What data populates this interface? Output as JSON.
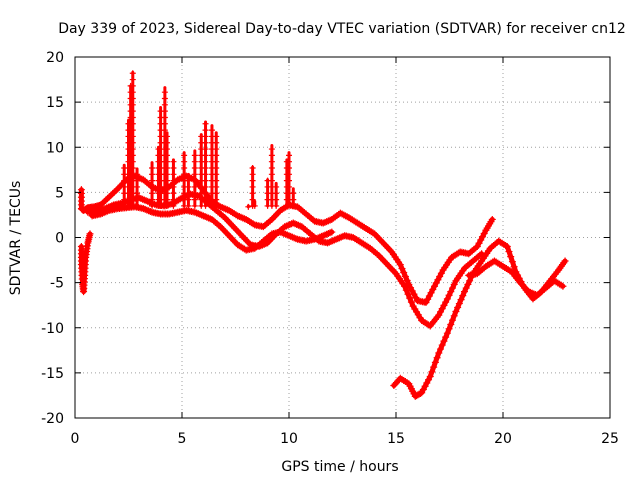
{
  "chart_data": {
    "type": "scatter",
    "title": "Day 339 of 2023, Sidereal Day-to-day VTEC variation (SDTVAR) for receiver cn12",
    "xlabel": "GPS time / hours",
    "ylabel": "SDTVAR / TECUs",
    "xlim": [
      0,
      25
    ],
    "ylim": [
      -20,
      20
    ],
    "xticks": [
      0,
      5,
      10,
      15,
      20,
      25
    ],
    "yticks": [
      -20,
      -15,
      -10,
      -5,
      0,
      5,
      10,
      15,
      20
    ],
    "grid": true,
    "legend": "none",
    "series_color": "#ff0000",
    "series": [
      {
        "name": "track-a",
        "points": [
          [
            0.3,
            5.3
          ],
          [
            0.3,
            3.2
          ],
          [
            0.4,
            3.0
          ],
          [
            0.6,
            3.3
          ],
          [
            0.9,
            3.4
          ],
          [
            1.2,
            3.6
          ],
          [
            1.6,
            4.5
          ],
          [
            2.0,
            5.4
          ],
          [
            2.4,
            6.4
          ],
          [
            2.8,
            6.8
          ],
          [
            3.2,
            6.4
          ],
          [
            3.6,
            5.6
          ],
          [
            4.0,
            5.2
          ],
          [
            4.4,
            5.6
          ],
          [
            4.8,
            6.4
          ],
          [
            5.2,
            6.8
          ],
          [
            5.6,
            6.4
          ],
          [
            6.0,
            5.2
          ],
          [
            6.4,
            4.0
          ],
          [
            6.8,
            3.4
          ],
          [
            7.2,
            3.0
          ],
          [
            7.6,
            2.4
          ],
          [
            8.0,
            2.0
          ],
          [
            8.4,
            1.4
          ],
          [
            8.8,
            1.2
          ],
          [
            9.2,
            2.0
          ],
          [
            9.6,
            3.0
          ],
          [
            10.0,
            3.6
          ],
          [
            10.4,
            3.4
          ],
          [
            10.8,
            2.6
          ],
          [
            11.2,
            1.8
          ],
          [
            11.6,
            1.6
          ],
          [
            12.0,
            2.0
          ],
          [
            12.4,
            2.7
          ],
          [
            12.8,
            2.2
          ],
          [
            13.2,
            1.6
          ],
          [
            13.6,
            1.0
          ],
          [
            14.0,
            0.4
          ],
          [
            14.4,
            -0.6
          ],
          [
            14.8,
            -1.6
          ],
          [
            15.2,
            -3.0
          ],
          [
            15.6,
            -5.2
          ],
          [
            16.0,
            -7.0
          ],
          [
            16.4,
            -7.2
          ],
          [
            16.8,
            -5.4
          ],
          [
            17.2,
            -3.6
          ],
          [
            17.6,
            -2.2
          ],
          [
            18.0,
            -1.6
          ],
          [
            18.4,
            -1.8
          ],
          [
            18.8,
            -1.0
          ],
          [
            19.2,
            0.8
          ],
          [
            19.5,
            2.0
          ]
        ]
      },
      {
        "name": "track-b",
        "points": [
          [
            0.6,
            2.8
          ],
          [
            1.0,
            2.9
          ],
          [
            1.4,
            3.2
          ],
          [
            1.8,
            3.6
          ],
          [
            2.2,
            3.8
          ],
          [
            2.6,
            4.2
          ],
          [
            3.0,
            4.4
          ],
          [
            3.4,
            4.0
          ],
          [
            3.8,
            3.6
          ],
          [
            4.2,
            3.5
          ],
          [
            4.6,
            3.8
          ],
          [
            5.0,
            4.4
          ],
          [
            5.4,
            4.8
          ],
          [
            5.8,
            4.6
          ],
          [
            6.2,
            3.8
          ],
          [
            6.6,
            3.0
          ],
          [
            7.0,
            2.2
          ],
          [
            7.4,
            1.2
          ],
          [
            7.8,
            0.2
          ],
          [
            8.2,
            -0.8
          ],
          [
            8.6,
            -1.0
          ],
          [
            9.0,
            -0.6
          ],
          [
            9.4,
            0.4
          ],
          [
            9.8,
            1.2
          ],
          [
            10.2,
            1.6
          ],
          [
            10.6,
            1.2
          ],
          [
            11.0,
            0.4
          ],
          [
            11.4,
            -0.4
          ],
          [
            11.8,
            -0.6
          ],
          [
            12.2,
            -0.2
          ],
          [
            12.6,
            0.2
          ],
          [
            13.0,
            0.0
          ],
          [
            13.4,
            -0.6
          ],
          [
            13.8,
            -1.2
          ],
          [
            14.2,
            -2.0
          ],
          [
            14.6,
            -3.0
          ],
          [
            15.0,
            -4.0
          ],
          [
            15.4,
            -5.4
          ],
          [
            15.8,
            -7.6
          ],
          [
            16.2,
            -9.2
          ],
          [
            16.6,
            -9.8
          ],
          [
            17.0,
            -8.6
          ],
          [
            17.4,
            -6.8
          ],
          [
            17.8,
            -4.8
          ],
          [
            18.2,
            -3.4
          ],
          [
            18.6,
            -2.6
          ],
          [
            19.0,
            -1.8
          ]
        ]
      },
      {
        "name": "track-c",
        "points": [
          [
            0.8,
            2.4
          ],
          [
            1.2,
            2.6
          ],
          [
            1.6,
            3.0
          ],
          [
            2.0,
            3.2
          ],
          [
            2.4,
            3.3
          ],
          [
            2.8,
            3.4
          ],
          [
            3.2,
            3.2
          ],
          [
            3.6,
            2.8
          ],
          [
            4.0,
            2.6
          ],
          [
            4.4,
            2.6
          ],
          [
            4.8,
            2.8
          ],
          [
            5.2,
            3.0
          ],
          [
            5.6,
            2.8
          ],
          [
            6.0,
            2.4
          ],
          [
            6.4,
            2.0
          ],
          [
            6.8,
            1.2
          ],
          [
            7.2,
            0.2
          ],
          [
            7.6,
            -0.8
          ],
          [
            8.0,
            -1.4
          ],
          [
            8.4,
            -1.2
          ],
          [
            8.8,
            -0.4
          ],
          [
            9.2,
            0.4
          ],
          [
            9.6,
            0.6
          ],
          [
            10.0,
            0.2
          ],
          [
            10.4,
            -0.2
          ],
          [
            10.8,
            -0.4
          ],
          [
            11.2,
            -0.2
          ],
          [
            11.6,
            0.2
          ],
          [
            12.0,
            0.6
          ]
        ]
      },
      {
        "name": "track-d",
        "points": [
          [
            14.9,
            -16.4
          ],
          [
            15.2,
            -15.6
          ],
          [
            15.6,
            -16.2
          ],
          [
            15.9,
            -17.6
          ],
          [
            16.2,
            -17.2
          ],
          [
            16.6,
            -15.4
          ],
          [
            17.0,
            -12.8
          ],
          [
            17.4,
            -10.6
          ],
          [
            17.8,
            -8.2
          ],
          [
            18.2,
            -6.0
          ],
          [
            18.6,
            -4.0
          ],
          [
            19.0,
            -2.6
          ],
          [
            19.4,
            -1.2
          ],
          [
            19.8,
            -0.4
          ],
          [
            20.2,
            -1.0
          ],
          [
            20.6,
            -3.8
          ],
          [
            21.0,
            -5.6
          ],
          [
            21.4,
            -6.8
          ],
          [
            21.8,
            -6.0
          ],
          [
            22.2,
            -4.8
          ],
          [
            22.6,
            -3.6
          ],
          [
            22.9,
            -2.6
          ]
        ]
      },
      {
        "name": "track-e",
        "points": [
          [
            18.4,
            -4.2
          ],
          [
            18.8,
            -4.0
          ],
          [
            19.2,
            -3.2
          ],
          [
            19.6,
            -2.6
          ],
          [
            20.0,
            -3.2
          ],
          [
            20.4,
            -3.8
          ],
          [
            20.8,
            -5.0
          ],
          [
            21.2,
            -6.0
          ],
          [
            21.6,
            -6.4
          ],
          [
            22.0,
            -5.6
          ],
          [
            22.4,
            -4.8
          ],
          [
            22.8,
            -5.4
          ]
        ]
      },
      {
        "name": "early-drop",
        "points": [
          [
            0.3,
            -1.0
          ],
          [
            0.3,
            -3.0
          ],
          [
            0.35,
            -5.0
          ],
          [
            0.4,
            -6.0
          ],
          [
            0.45,
            -4.2
          ],
          [
            0.5,
            -2.2
          ],
          [
            0.6,
            -0.6
          ],
          [
            0.7,
            0.4
          ]
        ]
      },
      {
        "name": "spikes",
        "points": [
          [
            2.1,
            3.8
          ],
          [
            2.3,
            8.0
          ],
          [
            2.5,
            13.0
          ],
          [
            2.6,
            16.8
          ],
          [
            2.7,
            18.3
          ],
          [
            2.9,
            7.6
          ],
          [
            3.6,
            8.3
          ],
          [
            3.9,
            10.0
          ],
          [
            4.0,
            14.4
          ],
          [
            4.2,
            16.6
          ],
          [
            4.3,
            11.6
          ],
          [
            4.6,
            8.6
          ],
          [
            5.1,
            9.4
          ],
          [
            5.3,
            7.0
          ],
          [
            5.6,
            9.6
          ],
          [
            5.9,
            11.4
          ],
          [
            6.1,
            12.8
          ],
          [
            6.4,
            12.4
          ],
          [
            6.6,
            11.6
          ],
          [
            8.1,
            3.4
          ],
          [
            8.3,
            7.8
          ],
          [
            8.4,
            4.0
          ],
          [
            9.0,
            6.4
          ],
          [
            9.2,
            10.2
          ],
          [
            9.4,
            6.0
          ],
          [
            9.9,
            8.6
          ],
          [
            10.0,
            9.4
          ],
          [
            10.2,
            5.4
          ]
        ]
      }
    ]
  }
}
